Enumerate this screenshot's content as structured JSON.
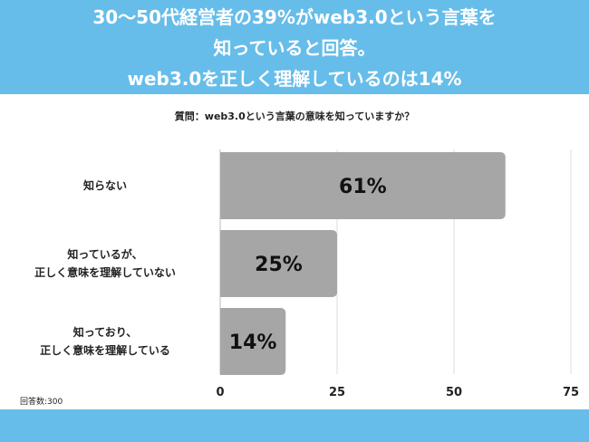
{
  "header": {
    "lines": [
      "30〜50代経営者の39%がweb3.0という言葉を",
      "知っていると回答。",
      "web3.0を正しく理解しているのは14%"
    ]
  },
  "chart_data": {
    "type": "bar",
    "orientation": "horizontal",
    "title": "質問：web3.0という言葉の意味を知っていますか？",
    "categories": [
      [
        "知らない"
      ],
      [
        "知っているが、",
        "正しく意味を理解していない"
      ],
      [
        "知っており、",
        "正しく意味を理解している"
      ]
    ],
    "values": [
      61,
      25,
      14
    ],
    "data_labels": [
      "61%",
      "25%",
      "14%"
    ],
    "xlim": [
      0,
      75
    ],
    "xticks": [
      0,
      25,
      50,
      75
    ],
    "grid": true,
    "bar_color": "#a6a6a6",
    "note": "回答数:300"
  }
}
